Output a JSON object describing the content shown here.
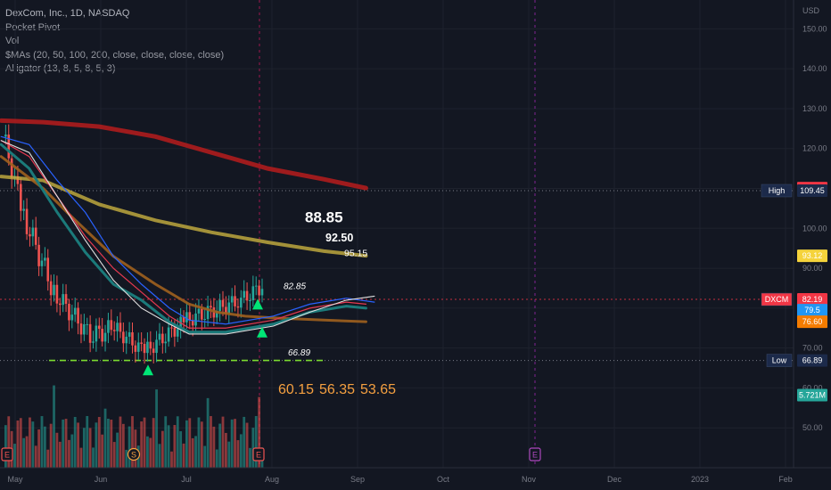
{
  "legend": {
    "title": "DexCom, Inc., 1D, NASDAQ",
    "lines": [
      "Pocket Pivot",
      "Vol",
      "$MAs (20, 50, 100, 200, close, close, close, close)",
      "Alligator (13, 8, 5, 8, 5, 3)"
    ]
  },
  "chart_data": {
    "type": "candlestick",
    "currency": "USD",
    "ylim": [
      40,
      155
    ],
    "y_ticks": [
      50,
      60,
      70,
      80,
      90,
      100,
      110,
      120,
      130,
      140,
      150
    ],
    "x_ticks": [
      "May",
      "Jun",
      "Jul",
      "Aug",
      "Sep",
      "Oct",
      "Nov",
      "Dec",
      "2023",
      "Feb"
    ],
    "price_tags": [
      {
        "label": "",
        "value": "110.09",
        "price": 110.09,
        "color": "#f23645"
      },
      {
        "label": "High",
        "value": "109.45",
        "price": 109.45,
        "color": "#1c2a4a"
      },
      {
        "label": "",
        "value": "93.12",
        "price": 93.12,
        "color": "#f5d33b"
      },
      {
        "label": "DXCM",
        "value": "82.19",
        "price": 82.19,
        "color": "#f23645"
      },
      {
        "label": "",
        "value": "79.5",
        "price": 79.5,
        "color": "#2196f3"
      },
      {
        "label": "",
        "value": "76.60",
        "price": 76.6,
        "color": "#f57c00"
      },
      {
        "label": "Low",
        "value": "66.89",
        "price": 66.89,
        "color": "#1c2a4a"
      },
      {
        "label": "",
        "value": "5.721M",
        "price": 58.2,
        "color": "#26a69a"
      }
    ],
    "annotations": [
      {
        "text": "88.85",
        "price": 101.5
      },
      {
        "text": "92.50",
        "price": 96.7
      },
      {
        "text": "95.15",
        "price": 93.0
      },
      {
        "text": "82.85",
        "price": 84.8
      },
      {
        "text": "66.89",
        "price": 68.1
      }
    ],
    "downside_targets": [
      "60.15",
      "56.35",
      "53.65"
    ],
    "event_markers": [
      "E",
      "S",
      "E",
      "E"
    ],
    "support_level": 66.89,
    "resistance_level": 82.19
  }
}
